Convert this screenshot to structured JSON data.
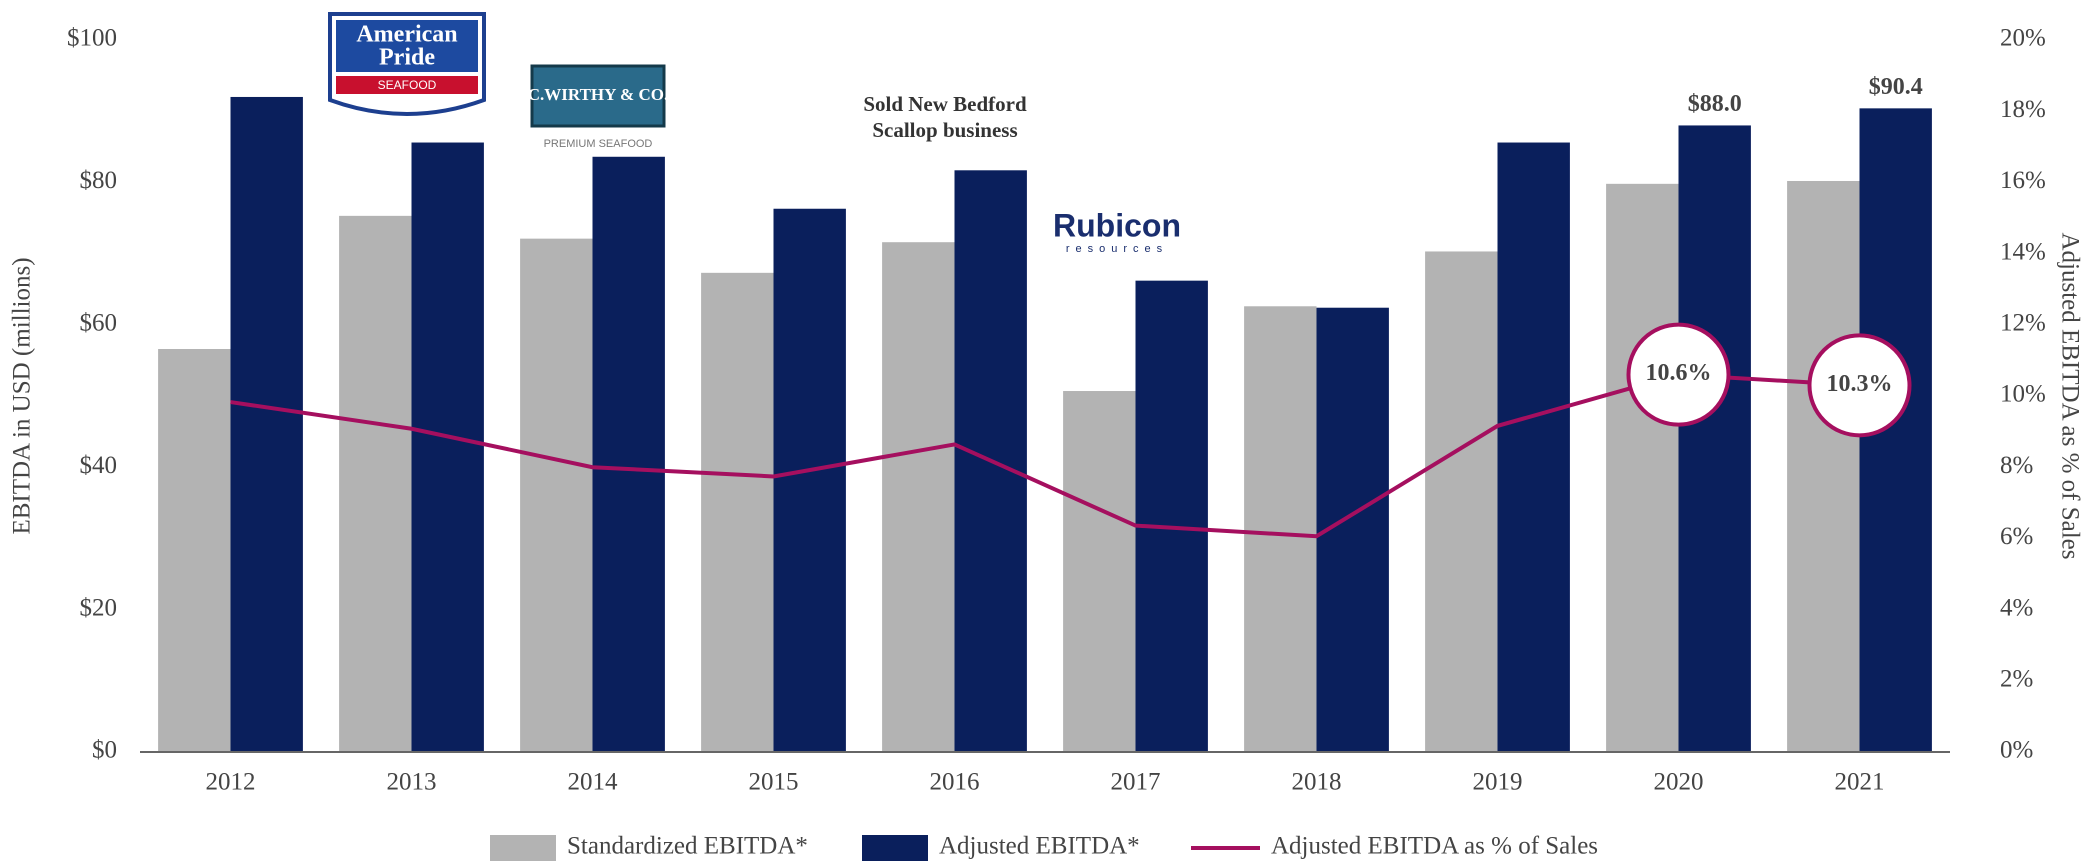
{
  "chart_data": {
    "type": "bar",
    "categories": [
      "2012",
      "2013",
      "2014",
      "2015",
      "2016",
      "2017",
      "2018",
      "2019",
      "2020",
      "2021"
    ],
    "series": [
      {
        "name": "Standardized EBITDA*",
        "color": "#b3b3b3",
        "values": [
          56.6,
          75.3,
          72.1,
          67.3,
          71.6,
          50.7,
          62.6,
          70.3,
          79.8,
          80.2
        ]
      },
      {
        "name": "Adjusted EBITDA*",
        "color": "#0a1f5c",
        "values": [
          92.0,
          85.6,
          83.6,
          76.3,
          81.7,
          66.2,
          62.4,
          85.6,
          88.0,
          90.4
        ],
        "value_labels": [
          null,
          null,
          null,
          null,
          null,
          null,
          null,
          null,
          "$88.0",
          "$90.4"
        ]
      },
      {
        "name": "Adjusted EBITDA as % of Sales",
        "color": "#a50f5f",
        "type": "line",
        "axis": "y2",
        "values": [
          9.83,
          9.08,
          8.0,
          7.74,
          8.64,
          6.36,
          6.06,
          9.16,
          10.6,
          10.3
        ],
        "value_labels": [
          null,
          null,
          null,
          null,
          null,
          null,
          null,
          null,
          "10.6%",
          "10.3%"
        ]
      }
    ],
    "y_label": "EBITDA in USD (millions)",
    "y2_label": "Adjusted EBITDA as % of Sales",
    "ylim": [
      0,
      100
    ],
    "yticks": [
      {
        "value": 0,
        "label": "$0"
      },
      {
        "value": 20,
        "label": "$20"
      },
      {
        "value": 40,
        "label": "$40"
      },
      {
        "value": 60,
        "label": "$60"
      },
      {
        "value": 80,
        "label": "$80"
      },
      {
        "value": 100,
        "label": "$100"
      }
    ],
    "y2lim": [
      0,
      20
    ],
    "y2ticks": [
      {
        "value": 0,
        "label": "0%"
      },
      {
        "value": 2,
        "label": "2%"
      },
      {
        "value": 4,
        "label": "4%"
      },
      {
        "value": 6,
        "label": "6%"
      },
      {
        "value": 8,
        "label": "8%"
      },
      {
        "value": 10,
        "label": "10%"
      },
      {
        "value": 12,
        "label": "12%"
      },
      {
        "value": 14,
        "label": "14%"
      },
      {
        "value": 16,
        "label": "16%"
      },
      {
        "value": 18,
        "label": "18%"
      },
      {
        "value": 20,
        "label": "20%"
      }
    ],
    "annotations": [
      "Sold New Bedford",
      "Scallop business"
    ],
    "logos": [
      "American",
      "Pride",
      "SEAFOOD",
      "C.WIRTHY & CO.",
      "PREMIUM SEAFOOD",
      "Rubicon",
      "resources"
    ],
    "legend": "bottom"
  }
}
